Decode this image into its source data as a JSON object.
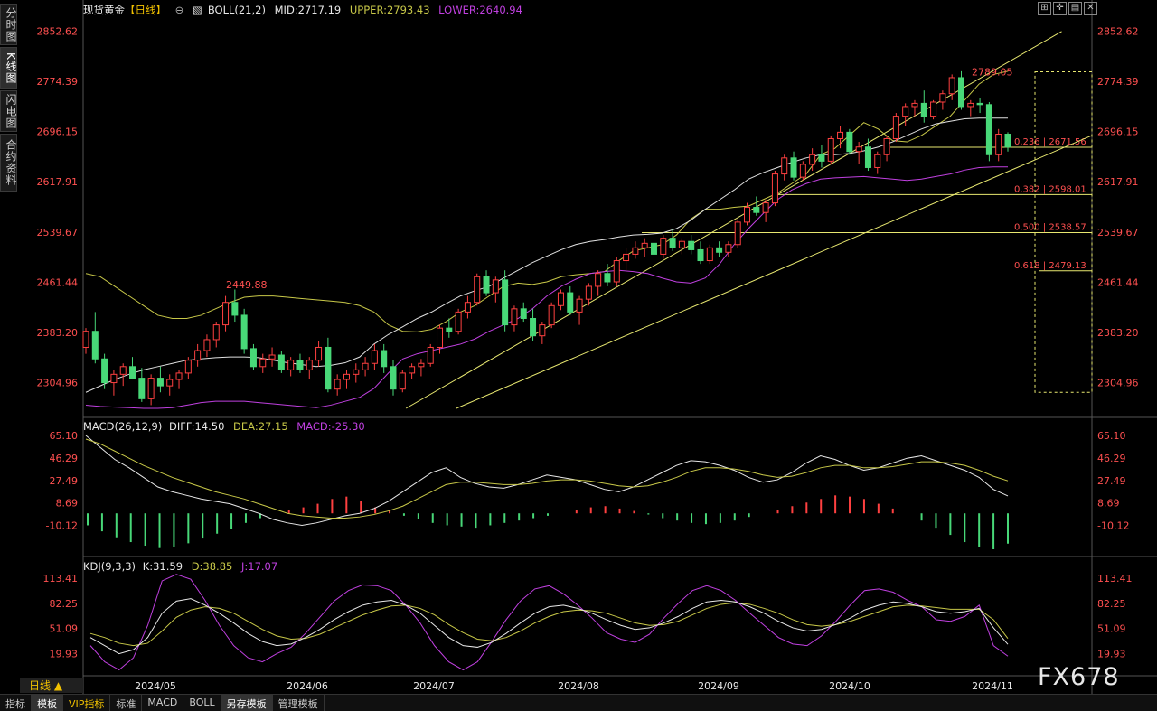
{
  "title_bar": {
    "instrument": "现货黄金",
    "period_bracket": "【日线】",
    "boll": "BOLL(21,2)",
    "mid": "MID:2717.19",
    "upper": "UPPER:2793.43",
    "lower": "LOWER:2640.94"
  },
  "side_tabs": [
    "分时图",
    "K线图",
    "闪电图",
    "合约资料"
  ],
  "top_icons": [
    "expand-icon",
    "crosshair-icon",
    "layout-icon",
    "close-icon"
  ],
  "period_label": "日线 ▲",
  "bottom_tabs": [
    "指标",
    "模板",
    "VIP指标",
    "标准",
    "MACD",
    "BOLL",
    "另存模板",
    "管理模板"
  ],
  "watermark": "FX678",
  "macd_legend": {
    "name": "MACD(26,12,9)",
    "diff": "DIFF:14.50",
    "dea": "DEA:27.15",
    "macd": "MACD:-25.30"
  },
  "kdj_legend": {
    "name": "KDJ(9,3,3)",
    "k": "K:31.59",
    "d": "D:38.85",
    "j": "J:17.07"
  },
  "colors": {
    "up": "#48d878",
    "down": "#ff4040",
    "boll_upper": "#c8c848",
    "boll_mid": "#e0e0e0",
    "boll_lower": "#c040e0",
    "fib": "#e8e870",
    "axis_text": "#ff5050",
    "title_yellow": "#f0c000"
  },
  "chart_data": [
    {
      "type": "candlestick",
      "panel": "price",
      "y_ticks": [
        "2852.62",
        "2774.39",
        "2696.15",
        "2617.91",
        "2539.67",
        "2461.44",
        "2383.20",
        "2304.96"
      ],
      "ylim": [
        2265,
        2870
      ],
      "x_labels": [
        "2024/05",
        "2024/06",
        "2024/07",
        "2024/08",
        "2024/09",
        "2024/10",
        "2024/11"
      ],
      "candles": [
        [
          2360,
          2390,
          2350,
          2385
        ],
        [
          2385,
          2415,
          2335,
          2342
        ],
        [
          2342,
          2350,
          2295,
          2305
        ],
        [
          2305,
          2325,
          2285,
          2318
        ],
        [
          2318,
          2335,
          2300,
          2330
        ],
        [
          2330,
          2345,
          2310,
          2312
        ],
        [
          2312,
          2328,
          2275,
          2280
        ],
        [
          2280,
          2318,
          2270,
          2312
        ],
        [
          2312,
          2330,
          2290,
          2300
        ],
        [
          2300,
          2318,
          2285,
          2310
        ],
        [
          2310,
          2325,
          2295,
          2320
        ],
        [
          2320,
          2345,
          2310,
          2340
        ],
        [
          2340,
          2365,
          2330,
          2355
        ],
        [
          2355,
          2380,
          2345,
          2372
        ],
        [
          2372,
          2400,
          2360,
          2395
        ],
        [
          2395,
          2440,
          2385,
          2430
        ],
        [
          2430,
          2450,
          2400,
          2410
        ],
        [
          2410,
          2420,
          2350,
          2358
        ],
        [
          2358,
          2365,
          2325,
          2330
        ],
        [
          2330,
          2350,
          2320,
          2342
        ],
        [
          2342,
          2360,
          2330,
          2348
        ],
        [
          2348,
          2355,
          2320,
          2325
        ],
        [
          2325,
          2345,
          2315,
          2340
        ],
        [
          2340,
          2350,
          2320,
          2325
        ],
        [
          2325,
          2345,
          2310,
          2340
        ],
        [
          2340,
          2370,
          2330,
          2360
        ],
        [
          2360,
          2375,
          2290,
          2295
        ],
        [
          2295,
          2318,
          2285,
          2310
        ],
        [
          2310,
          2325,
          2295,
          2318
        ],
        [
          2318,
          2335,
          2305,
          2325
        ],
        [
          2325,
          2345,
          2315,
          2335
        ],
        [
          2335,
          2365,
          2325,
          2355
        ],
        [
          2355,
          2365,
          2320,
          2330
        ],
        [
          2330,
          2340,
          2285,
          2295
        ],
        [
          2295,
          2325,
          2290,
          2320
        ],
        [
          2320,
          2335,
          2310,
          2330
        ],
        [
          2330,
          2342,
          2315,
          2335
        ],
        [
          2335,
          2365,
          2330,
          2360
        ],
        [
          2360,
          2395,
          2350,
          2390
        ],
        [
          2390,
          2405,
          2375,
          2385
        ],
        [
          2385,
          2420,
          2380,
          2415
        ],
        [
          2415,
          2440,
          2405,
          2430
        ],
        [
          2430,
          2475,
          2425,
          2470
        ],
        [
          2470,
          2480,
          2440,
          2445
        ],
        [
          2445,
          2470,
          2430,
          2465
        ],
        [
          2465,
          2480,
          2385,
          2395
        ],
        [
          2395,
          2425,
          2385,
          2420
        ],
        [
          2420,
          2430,
          2400,
          2405
        ],
        [
          2405,
          2420,
          2370,
          2378
        ],
        [
          2378,
          2400,
          2365,
          2395
        ],
        [
          2395,
          2430,
          2390,
          2425
        ],
        [
          2425,
          2450,
          2418,
          2445
        ],
        [
          2445,
          2455,
          2410,
          2415
        ],
        [
          2415,
          2440,
          2395,
          2435
        ],
        [
          2435,
          2460,
          2425,
          2455
        ],
        [
          2455,
          2480,
          2440,
          2475
        ],
        [
          2475,
          2490,
          2455,
          2462
        ],
        [
          2462,
          2500,
          2455,
          2495
        ],
        [
          2495,
          2515,
          2480,
          2505
        ],
        [
          2505,
          2525,
          2498,
          2515
        ],
        [
          2515,
          2530,
          2500,
          2522
        ],
        [
          2522,
          2540,
          2500,
          2505
        ],
        [
          2505,
          2535,
          2498,
          2530
        ],
        [
          2530,
          2545,
          2510,
          2515
        ],
        [
          2515,
          2530,
          2505,
          2525
        ],
        [
          2525,
          2535,
          2505,
          2512
        ],
        [
          2512,
          2525,
          2490,
          2495
        ],
        [
          2495,
          2520,
          2490,
          2515
        ],
        [
          2515,
          2525,
          2500,
          2508
        ],
        [
          2508,
          2525,
          2500,
          2520
        ],
        [
          2520,
          2560,
          2515,
          2555
        ],
        [
          2555,
          2585,
          2550,
          2578
        ],
        [
          2578,
          2595,
          2565,
          2570
        ],
        [
          2570,
          2590,
          2555,
          2585
        ],
        [
          2585,
          2635,
          2580,
          2630
        ],
        [
          2630,
          2660,
          2620,
          2655
        ],
        [
          2655,
          2665,
          2620,
          2625
        ],
        [
          2625,
          2650,
          2620,
          2645
        ],
        [
          2645,
          2670,
          2635,
          2660
        ],
        [
          2660,
          2675,
          2640,
          2650
        ],
        [
          2650,
          2690,
          2645,
          2685
        ],
        [
          2685,
          2705,
          2670,
          2695
        ],
        [
          2695,
          2700,
          2660,
          2665
        ],
        [
          2665,
          2680,
          2645,
          2672
        ],
        [
          2672,
          2685,
          2635,
          2640
        ],
        [
          2640,
          2665,
          2630,
          2660
        ],
        [
          2660,
          2690,
          2650,
          2685
        ],
        [
          2685,
          2725,
          2680,
          2720
        ],
        [
          2720,
          2740,
          2705,
          2735
        ],
        [
          2735,
          2745,
          2720,
          2740
        ],
        [
          2740,
          2760,
          2710,
          2720
        ],
        [
          2720,
          2745,
          2715,
          2742
        ],
        [
          2742,
          2760,
          2730,
          2755
        ],
        [
          2755,
          2785,
          2745,
          2780
        ],
        [
          2780,
          2790,
          2730,
          2735
        ],
        [
          2735,
          2745,
          2720,
          2740
        ],
        [
          2740,
          2748,
          2725,
          2738
        ],
        [
          2738,
          2742,
          2650,
          2660
        ],
        [
          2660,
          2700,
          2650,
          2692
        ],
        [
          2692,
          2695,
          2665,
          2672
        ]
      ],
      "boll_upper_curve": [
        2475,
        2470,
        2455,
        2440,
        2425,
        2410,
        2405,
        2405,
        2410,
        2420,
        2430,
        2438,
        2440,
        2440,
        2438,
        2436,
        2434,
        2432,
        2430,
        2425,
        2415,
        2395,
        2385,
        2384,
        2388,
        2400,
        2415,
        2425,
        2440,
        2455,
        2460,
        2458,
        2462,
        2470,
        2473,
        2475,
        2478,
        2495,
        2510,
        2515,
        2520,
        2535,
        2560,
        2575,
        2575,
        2578,
        2580,
        2590,
        2600,
        2615,
        2630,
        2660,
        2670,
        2690,
        2710,
        2700,
        2682,
        2680,
        2690,
        2705,
        2720,
        2745,
        2770,
        2785,
        2790
      ],
      "boll_mid_curve": [
        2290,
        2300,
        2310,
        2318,
        2325,
        2330,
        2335,
        2340,
        2342,
        2344,
        2345,
        2345,
        2344,
        2340,
        2336,
        2333,
        2330,
        2332,
        2336,
        2345,
        2365,
        2380,
        2392,
        2405,
        2415,
        2428,
        2440,
        2448,
        2455,
        2468,
        2480,
        2492,
        2502,
        2512,
        2520,
        2525,
        2528,
        2532,
        2535,
        2536,
        2538,
        2545,
        2558,
        2575,
        2590,
        2605,
        2622,
        2632,
        2640,
        2648,
        2655,
        2660,
        2660,
        2662,
        2666,
        2672,
        2680,
        2690,
        2700,
        2708,
        2712,
        2716,
        2717,
        2717,
        2717
      ],
      "boll_lower_curve": [
        2270,
        2268,
        2267,
        2266,
        2265,
        2265,
        2266,
        2270,
        2274,
        2276,
        2276,
        2276,
        2274,
        2272,
        2270,
        2268,
        2266,
        2270,
        2276,
        2282,
        2296,
        2320,
        2342,
        2350,
        2355,
        2360,
        2365,
        2373,
        2385,
        2395,
        2405,
        2420,
        2440,
        2455,
        2466,
        2475,
        2478,
        2480,
        2478,
        2475,
        2468,
        2462,
        2460,
        2468,
        2490,
        2520,
        2545,
        2568,
        2590,
        2605,
        2615,
        2622,
        2624,
        2625,
        2626,
        2624,
        2622,
        2620,
        2622,
        2626,
        2630,
        2636,
        2640,
        2641,
        2641
      ],
      "annotations": [
        "2449.88",
        "2789.05"
      ],
      "fib_levels": [
        {
          "label": "0.236 | 2671.56",
          "price": 2671.56
        },
        {
          "label": "0.382 | 2598.01",
          "price": 2598.01
        },
        {
          "label": "0.500 | 2538.57",
          "price": 2538.57
        },
        {
          "label": "0.618 | 2479.13",
          "price": 2479.13
        }
      ],
      "fib_top_price": 2789.05,
      "trendlines": [
        {
          "x": [
            0.32,
            0.97
          ],
          "y": [
            2265,
            2852
          ]
        },
        {
          "x": [
            0.37,
            1.0
          ],
          "y": [
            2265,
            2690
          ]
        }
      ]
    },
    {
      "type": "macd",
      "panel": "macd",
      "y_ticks": [
        "65.10",
        "46.29",
        "27.49",
        "8.69",
        "-10.12"
      ],
      "ylim": [
        -30,
        65
      ],
      "diff": [
        65,
        55,
        45,
        38,
        30,
        22,
        18,
        15,
        12,
        10,
        8,
        4,
        0,
        -5,
        -8,
        -10,
        -8,
        -5,
        -2,
        0,
        4,
        10,
        18,
        26,
        34,
        38,
        30,
        25,
        22,
        21,
        24,
        28,
        32,
        30,
        28,
        24,
        20,
        18,
        22,
        28,
        34,
        40,
        44,
        43,
        40,
        36,
        30,
        26,
        28,
        34,
        42,
        48,
        45,
        40,
        36,
        38,
        42,
        46,
        48,
        44,
        40,
        36,
        30,
        20,
        14.5
      ],
      "dea": [
        62,
        58,
        52,
        46,
        40,
        35,
        30,
        26,
        22,
        18,
        15,
        12,
        8,
        4,
        0,
        -2,
        -3,
        -4,
        -4,
        -3,
        -1,
        2,
        6,
        12,
        18,
        24,
        26,
        26,
        25,
        24,
        24,
        25,
        27,
        28,
        28,
        27,
        25,
        23,
        22,
        23,
        26,
        30,
        35,
        38,
        38,
        37,
        35,
        32,
        30,
        31,
        34,
        38,
        40,
        40,
        38,
        38,
        39,
        41,
        43,
        43,
        42,
        40,
        36,
        31,
        27.15
      ],
      "macd_bars": [
        -10,
        -15,
        -20,
        -24,
        -27,
        -29,
        -28,
        -25,
        -21,
        -17,
        -13,
        -8,
        -4,
        0,
        3,
        5,
        8,
        12,
        14,
        10,
        5,
        2,
        -2,
        -5,
        -8,
        -10,
        -11,
        -12,
        -10,
        -8,
        -6,
        -4,
        -2,
        0,
        3,
        5,
        6,
        4,
        2,
        -1,
        -4,
        -6,
        -8,
        -9,
        -8,
        -6,
        -3,
        0,
        3,
        6,
        9,
        12,
        15,
        14,
        12,
        8,
        4,
        0,
        -6,
        -12,
        -18,
        -24,
        -28,
        -30,
        -25.3
      ]
    },
    {
      "type": "kdj",
      "panel": "kdj",
      "y_ticks": [
        "113.41",
        "82.25",
        "51.09",
        "19.93"
      ],
      "ylim": [
        -5,
        120
      ],
      "k": [
        40,
        30,
        20,
        25,
        40,
        70,
        85,
        88,
        80,
        70,
        58,
        45,
        35,
        30,
        32,
        40,
        50,
        62,
        72,
        80,
        84,
        86,
        80,
        70,
        55,
        40,
        30,
        28,
        34,
        45,
        58,
        70,
        78,
        80,
        76,
        70,
        62,
        55,
        50,
        52,
        58,
        66,
        76,
        84,
        86,
        84,
        78,
        70,
        60,
        52,
        48,
        50,
        56,
        64,
        74,
        80,
        84,
        82,
        78,
        72,
        70,
        72,
        76,
        52,
        31.59
      ],
      "d": [
        45,
        40,
        33,
        30,
        33,
        48,
        65,
        74,
        78,
        76,
        70,
        60,
        50,
        42,
        38,
        39,
        44,
        52,
        60,
        68,
        74,
        79,
        80,
        76,
        68,
        56,
        46,
        38,
        36,
        40,
        48,
        58,
        66,
        72,
        74,
        73,
        70,
        64,
        58,
        55,
        56,
        60,
        68,
        76,
        81,
        83,
        81,
        76,
        70,
        62,
        56,
        54,
        56,
        60,
        66,
        72,
        78,
        80,
        79,
        77,
        75,
        75,
        75,
        62,
        38.85
      ],
      "j": [
        30,
        10,
        0,
        15,
        55,
        110,
        118,
        112,
        86,
        55,
        30,
        15,
        10,
        20,
        28,
        45,
        65,
        85,
        98,
        105,
        104,
        98,
        80,
        58,
        30,
        10,
        0,
        10,
        35,
        62,
        85,
        100,
        104,
        94,
        80,
        64,
        46,
        38,
        34,
        44,
        64,
        82,
        98,
        104,
        98,
        86,
        70,
        55,
        40,
        32,
        30,
        42,
        60,
        80,
        98,
        100,
        96,
        86,
        78,
        62,
        60,
        66,
        80,
        30,
        17.07
      ]
    }
  ]
}
